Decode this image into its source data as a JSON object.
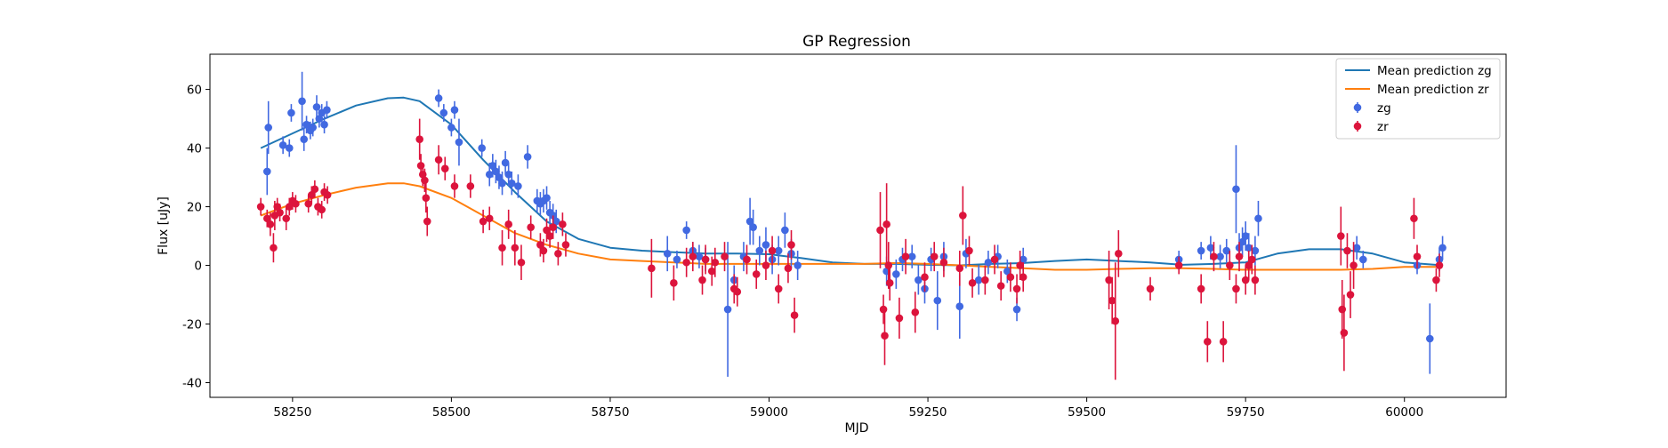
{
  "chart_data": {
    "type": "scatter",
    "title": "GP Regression",
    "xlabel": "MJD",
    "ylabel": "Flux [uJy]",
    "xlim": [
      58120,
      60160
    ],
    "ylim": [
      -45,
      72
    ],
    "x_ticks": [
      58250,
      58500,
      58750,
      59000,
      59250,
      59500,
      59750,
      60000
    ],
    "y_ticks": [
      -40,
      -20,
      0,
      20,
      40,
      60
    ],
    "grid": false,
    "legend_position": "top-right",
    "series": [
      {
        "name": "Mean prediction zg",
        "kind": "line",
        "color": "#1f77b4",
        "x": [
          58200,
          58250,
          58300,
          58350,
          58400,
          58425,
          58450,
          58500,
          58550,
          58600,
          58650,
          58700,
          58750,
          58800,
          58850,
          58900,
          58950,
          59000,
          59050,
          59100,
          59150,
          59200,
          59250,
          59300,
          59350,
          59400,
          59450,
          59500,
          59550,
          59600,
          59650,
          59700,
          59750,
          59800,
          59850,
          59900,
          59950,
          60000,
          60060
        ],
        "y": [
          40,
          45,
          50,
          54.5,
          57,
          57.2,
          56,
          48,
          36,
          25,
          15,
          9,
          6,
          5,
          4.5,
          4,
          4,
          3.8,
          2.5,
          1,
          0.5,
          0.5,
          0.2,
          0,
          0.5,
          0.8,
          1.5,
          2,
          1.5,
          1,
          0.2,
          0.5,
          1,
          4,
          5.5,
          5.5,
          4,
          1,
          0
        ]
      },
      {
        "name": "Mean prediction zr",
        "kind": "line",
        "color": "#ff7f0e",
        "x": [
          58200,
          58250,
          58300,
          58350,
          58400,
          58425,
          58450,
          58500,
          58550,
          58600,
          58650,
          58700,
          58750,
          58800,
          58850,
          58900,
          58950,
          59000,
          59050,
          59100,
          59150,
          59200,
          59250,
          59300,
          59350,
          59400,
          59450,
          59500,
          59550,
          59600,
          59650,
          59700,
          59750,
          59800,
          59850,
          59900,
          59950,
          60000,
          60060
        ],
        "y": [
          17,
          21,
          24,
          26.5,
          28,
          28,
          27,
          23,
          17,
          11,
          7,
          4,
          2,
          1.5,
          1,
          0.5,
          0.5,
          0.5,
          0.5,
          0.5,
          0.5,
          0.8,
          0.5,
          0,
          -0.5,
          -1,
          -1.5,
          -1.5,
          -1.2,
          -1,
          -1,
          -1.2,
          -1.5,
          -1.5,
          -1.5,
          -1.5,
          -1.2,
          -0.5,
          -0.5
        ]
      },
      {
        "name": "zg",
        "kind": "errorbar",
        "color": "#4169e1",
        "x": [
          58210,
          58212,
          58235,
          58245,
          58248,
          58265,
          58268,
          58272,
          58278,
          58282,
          58288,
          58292,
          58296,
          58300,
          58304,
          58480,
          58488,
          58500,
          58505,
          58512,
          58548,
          58560,
          58565,
          58570,
          58575,
          58580,
          58585,
          58590,
          58595,
          58605,
          58620,
          58635,
          58640,
          58645,
          58650,
          58655,
          58660,
          58665,
          58840,
          58855,
          58870,
          58880,
          58890,
          58900,
          58935,
          58945,
          58960,
          58970,
          58975,
          58985,
          58995,
          59005,
          59015,
          59025,
          59035,
          59045,
          59185,
          59200,
          59210,
          59225,
          59235,
          59245,
          59255,
          59265,
          59275,
          59300,
          59310,
          59330,
          59345,
          59360,
          59375,
          59390,
          59400,
          59645,
          59680,
          59695,
          59710,
          59720,
          59735,
          59740,
          59745,
          59750,
          59755,
          59765,
          59770,
          59925,
          59935,
          60020,
          60040,
          60055,
          60060
        ],
        "y": [
          32,
          47,
          41,
          40,
          52,
          56,
          43,
          48,
          46,
          47,
          54,
          50,
          52,
          48,
          53,
          57,
          52,
          47,
          53,
          42,
          40,
          31,
          34,
          32,
          30,
          28,
          35,
          31,
          28,
          27,
          37,
          22,
          21,
          22,
          23,
          18,
          17,
          15,
          4,
          2,
          12,
          5,
          3,
          2,
          -15,
          -5,
          3,
          15,
          13,
          5,
          7,
          2,
          5,
          12,
          4,
          0,
          -2,
          -3,
          2,
          3,
          -5,
          -8,
          2,
          -12,
          3,
          -14,
          4,
          -5,
          1,
          3,
          -2,
          -15,
          2,
          2,
          5,
          6,
          3,
          5,
          26,
          6,
          8,
          10,
          6,
          5,
          16,
          6,
          2,
          0,
          -25,
          2,
          6
        ],
        "err": [
          8,
          9,
          3,
          3,
          3,
          10,
          4,
          3,
          3,
          3,
          4,
          3,
          3,
          3,
          3,
          3,
          3,
          3,
          3,
          8,
          3,
          4,
          4,
          4,
          4,
          4,
          4,
          4,
          4,
          4,
          4,
          4,
          4,
          4,
          4,
          4,
          4,
          4,
          6,
          3,
          3,
          3,
          4,
          4,
          23,
          5,
          5,
          8,
          6,
          5,
          6,
          5,
          5,
          6,
          5,
          5,
          5,
          5,
          4,
          4,
          5,
          5,
          4,
          10,
          5,
          11,
          5,
          5,
          4,
          4,
          4,
          4,
          4,
          3,
          3,
          4,
          4,
          4,
          15,
          5,
          5,
          5,
          5,
          5,
          6,
          4,
          3,
          3,
          12,
          4,
          4
        ]
      },
      {
        "name": "zr",
        "kind": "errorbar",
        "color": "#dc143c",
        "x": [
          58200,
          58210,
          58215,
          58220,
          58222,
          58226,
          58230,
          58240,
          58245,
          58250,
          58255,
          58275,
          58280,
          58285,
          58290,
          58296,
          58300,
          58305,
          58450,
          58452,
          58455,
          58458,
          58460,
          58462,
          58480,
          58490,
          58505,
          58530,
          58550,
          58560,
          58580,
          58590,
          58600,
          58610,
          58625,
          58640,
          58645,
          58650,
          58655,
          58660,
          58668,
          58675,
          58680,
          58815,
          58850,
          58870,
          58880,
          58895,
          58900,
          58910,
          58915,
          58930,
          58945,
          58950,
          58965,
          58980,
          58995,
          59005,
          59015,
          59030,
          59035,
          59040,
          59175,
          59180,
          59182,
          59185,
          59188,
          59190,
          59205,
          59215,
          59230,
          59245,
          59260,
          59275,
          59300,
          59305,
          59315,
          59320,
          59340,
          59355,
          59365,
          59380,
          59390,
          59395,
          59400,
          59535,
          59540,
          59545,
          59550,
          59600,
          59645,
          59680,
          59690,
          59700,
          59715,
          59725,
          59735,
          59740,
          59750,
          59755,
          59760,
          59765,
          59900,
          59902,
          59905,
          59910,
          59915,
          59920,
          60015,
          60020,
          60050,
          60055
        ],
        "y": [
          20,
          16,
          14,
          6,
          17,
          20,
          18,
          16,
          20,
          22,
          21,
          21,
          24,
          26,
          20,
          19,
          25,
          24,
          43,
          34,
          31,
          29,
          23,
          15,
          36,
          33,
          27,
          27,
          15,
          16,
          6,
          14,
          6,
          1,
          13,
          7,
          5,
          12,
          10,
          13,
          4,
          14,
          7,
          -1,
          -6,
          1,
          3,
          -5,
          2,
          -2,
          1,
          3,
          -8,
          -9,
          2,
          -3,
          0,
          5,
          -8,
          -1,
          7,
          -17,
          12,
          -15,
          -24,
          14,
          0,
          -6,
          -18,
          3,
          -16,
          -4,
          3,
          1,
          -1,
          17,
          5,
          -6,
          -5,
          2,
          -7,
          -4,
          -8,
          0,
          -4,
          -5,
          -12,
          -19,
          4,
          -8,
          0,
          -8,
          -26,
          3,
          -26,
          0,
          -8,
          3,
          -5,
          0,
          2,
          -5,
          10,
          -15,
          -23,
          5,
          -10,
          0,
          16,
          3,
          -5,
          0
        ],
        "err": [
          3,
          3,
          4,
          5,
          5,
          3,
          3,
          4,
          3,
          3,
          3,
          3,
          3,
          3,
          3,
          3,
          3,
          3,
          7,
          4,
          4,
          4,
          5,
          5,
          5,
          4,
          4,
          4,
          4,
          4,
          6,
          5,
          6,
          6,
          4,
          4,
          4,
          4,
          4,
          4,
          4,
          4,
          4,
          10,
          6,
          5,
          5,
          5,
          5,
          5,
          5,
          5,
          5,
          5,
          5,
          5,
          5,
          5,
          5,
          5,
          5,
          6,
          13,
          5,
          10,
          14,
          8,
          6,
          7,
          6,
          7,
          5,
          5,
          5,
          6,
          10,
          5,
          5,
          5,
          5,
          5,
          5,
          5,
          5,
          5,
          10,
          8,
          20,
          8,
          4,
          3,
          5,
          7,
          5,
          7,
          5,
          5,
          5,
          5,
          5,
          5,
          5,
          10,
          10,
          13,
          6,
          8,
          8,
          7,
          4,
          4,
          4
        ]
      }
    ]
  }
}
